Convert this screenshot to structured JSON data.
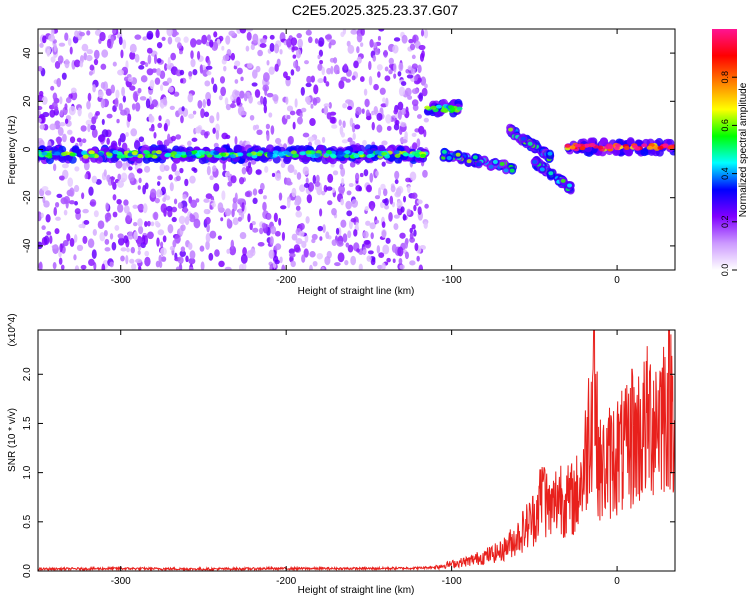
{
  "title": "C2E5.2025.325.23.37.G07",
  "chart_data": [
    {
      "type": "heatmap",
      "xlabel": "Height of straight line (km)",
      "ylabel": "Frequency (Hz)",
      "xlim": [
        -350,
        35
      ],
      "ylim": [
        -50,
        50
      ],
      "x_ticks": [
        -300,
        -200,
        -100,
        0
      ],
      "y_ticks": [
        -40,
        -20,
        0,
        20,
        40
      ],
      "grid": false,
      "colorbar": {
        "label": "Normalized spectral amplitude",
        "range": [
          0,
          1
        ],
        "ticks": [
          0.0,
          0.2,
          0.4,
          0.6,
          0.8
        ],
        "colormap": [
          "#ffffff",
          "#cc99ff",
          "#8000ff",
          "#0000ff",
          "#00ffff",
          "#00ff00",
          "#ffff00",
          "#ff8000",
          "#ff0000",
          "#ff1493"
        ]
      },
      "features": [
        {
          "description": "broadband scatter",
          "x_range": [
            -350,
            -115
          ],
          "freq_range": [
            -50,
            50
          ],
          "level": 0.2
        },
        {
          "description": "main line",
          "x_range": [
            -350,
            -115
          ],
          "freq": -2,
          "level": 0.5
        },
        {
          "description": "upper branch",
          "x_range": [
            -115,
            -95
          ],
          "freq": 17,
          "level": 0.5
        },
        {
          "description": "descending branch",
          "x": [
            -105,
            -62
          ],
          "freq": [
            -2,
            -8
          ],
          "level": 0.5
        },
        {
          "description": "mid branch",
          "x": [
            -65,
            -40
          ],
          "freq": [
            8,
            -3
          ],
          "level": 0.5
        },
        {
          "description": "lower branch",
          "x": [
            -50,
            -28
          ],
          "freq": [
            -5,
            -16
          ],
          "level": 0.45
        },
        {
          "description": "late line",
          "x_range": [
            -30,
            35
          ],
          "freq": 1,
          "level": 0.9
        }
      ]
    },
    {
      "type": "line",
      "xlabel": "Height of straight line (km)",
      "ylabel": "SNR (10 * v/v)",
      "y_multiplier": "(x10^4)",
      "xlim": [
        -350,
        35
      ],
      "ylim": [
        0,
        2.45
      ],
      "x_ticks": [
        -300,
        -200,
        -100,
        0
      ],
      "y_ticks": [
        0.0,
        0.5,
        1.0,
        1.5,
        2.0
      ],
      "grid": false,
      "series": [
        {
          "color": "#e8201c",
          "x": [
            -350,
            -300,
            -250,
            -200,
            -150,
            -120,
            -110,
            -100,
            -90,
            -80,
            -70,
            -60,
            -50,
            -45,
            -40,
            -35,
            -30,
            -25,
            -20,
            -15,
            -10,
            -5,
            0,
            5,
            10,
            15,
            20,
            25,
            30,
            35
          ],
          "y": [
            0.02,
            0.025,
            0.02,
            0.025,
            0.025,
            0.03,
            0.04,
            0.07,
            0.1,
            0.15,
            0.2,
            0.35,
            0.55,
            0.8,
            0.6,
            0.8,
            0.7,
            0.75,
            1.0,
            1.8,
            1.0,
            1.1,
            1.2,
            1.2,
            1.35,
            1.4,
            1.55,
            1.6,
            1.7,
            1.72
          ]
        }
      ],
      "peaks": [
        {
          "x": -14,
          "y": 2.45
        },
        {
          "x": 9,
          "y": 2.05
        },
        {
          "x": -44,
          "y": 1.05
        }
      ]
    }
  ]
}
